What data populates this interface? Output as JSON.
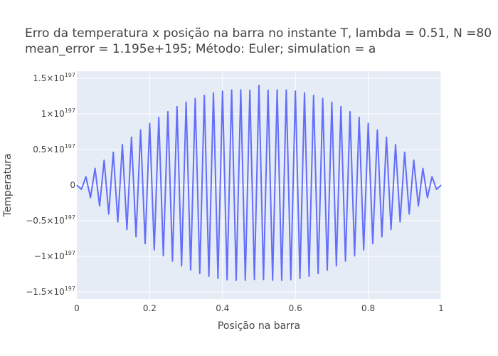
{
  "chart_data": {
    "type": "line",
    "title_lines": [
      "Erro da temperatura x posição na barra no instante T, lambda = 0.51, N =80",
      "mean_error = 1.195e+195; Método: Euler; simulation = a"
    ],
    "xlabel": "Posição na barra",
    "ylabel": "Temperatura",
    "xlim": [
      0,
      1
    ],
    "ylim": [
      -1.6e+197,
      1.6e+197
    ],
    "grid": true,
    "colors": {
      "line": "#636efa",
      "plot_bg": "#e5ecf6",
      "grid": "#ffffff"
    },
    "x_ticks": [
      {
        "value": 0,
        "label": "0"
      },
      {
        "value": 0.2,
        "label": "0.2"
      },
      {
        "value": 0.4,
        "label": "0.4"
      },
      {
        "value": 0.6,
        "label": "0.6"
      },
      {
        "value": 0.8,
        "label": "0.8"
      },
      {
        "value": 1,
        "label": "1"
      }
    ],
    "y_ticks": [
      {
        "value": 1.5e+197,
        "mantissa": "1.5×10",
        "exp": "197"
      },
      {
        "value": 1e+197,
        "mantissa": "1×10",
        "exp": "197"
      },
      {
        "value": 5e+196,
        "mantissa": "0.5×10",
        "exp": "197"
      },
      {
        "value": 0,
        "mantissa": "0",
        "exp": ""
      },
      {
        "value": -5e+196,
        "mantissa": "−0.5×10",
        "exp": "197"
      },
      {
        "value": -1e+197,
        "mantissa": "−1×10",
        "exp": "197"
      },
      {
        "value": -1.5e+197,
        "mantissa": "−1.5×10",
        "exp": "197"
      }
    ],
    "series": [
      {
        "x": [
          0,
          0.0125,
          0.025,
          0.0375,
          0.05,
          0.0625,
          0.075,
          0.0875,
          0.1,
          0.1125,
          0.125,
          0.1375,
          0.15,
          0.1625,
          0.175,
          0.1875,
          0.2,
          0.2125,
          0.225,
          0.2375,
          0.25,
          0.2625,
          0.275,
          0.2875,
          0.3,
          0.3125,
          0.325,
          0.3375,
          0.35,
          0.3625,
          0.375,
          0.3875,
          0.4,
          0.4125,
          0.425,
          0.4375,
          0.45,
          0.4625,
          0.475,
          0.4875,
          0.5,
          0.5125,
          0.525,
          0.5375,
          0.55,
          0.5625,
          0.575,
          0.5875,
          0.6,
          0.6125,
          0.625,
          0.6375,
          0.65,
          0.6625,
          0.675,
          0.6875,
          0.7,
          0.7125,
          0.725,
          0.7375,
          0.75,
          0.7625,
          0.775,
          0.7875,
          0.8,
          0.8125,
          0.825,
          0.8375,
          0.85,
          0.8625,
          0.875,
          0.8875,
          0.9,
          0.9125,
          0.925,
          0.9375,
          0.95,
          0.9625,
          0.975,
          0.9875,
          1
        ],
        "y": [
          0,
          -5.89e+195,
          1.177e+196,
          -1.763e+196,
          2.345e+196,
          -2.922e+196,
          3.494e+196,
          -4.059e+196,
          4.616e+196,
          -5.164e+196,
          5.701e+196,
          -6.228e+196,
          6.743e+196,
          -7.245e+196,
          7.732e+196,
          -8.205e+196,
          8.662e+196,
          -9.102e+196,
          9.524e+196,
          -9.928e+196,
          1.0313e+197,
          -1.0677e+197,
          1.1021e+197,
          -1.1343e+197,
          1.1644e+197,
          -1.1922e+197,
          1.2177e+197,
          -1.2409e+197,
          1.2617e+197,
          -1.28e+197,
          1.2959e+197,
          -1.3093e+197,
          1.3202e+197,
          -1.3286e+197,
          1.3344e+197,
          -1.3377e+197,
          1.3385e+197,
          -1.3367e+197,
          1.3323e+197,
          -1.3255e+197,
          1.4e+197,
          -1.3255e+197,
          1.3323e+197,
          -1.3367e+197,
          1.3385e+197,
          -1.3377e+197,
          1.3344e+197,
          -1.3286e+197,
          1.3202e+197,
          -1.3093e+197,
          1.2959e+197,
          -1.28e+197,
          1.2617e+197,
          -1.2409e+197,
          1.2177e+197,
          -1.1922e+197,
          1.1644e+197,
          -1.1343e+197,
          1.1021e+197,
          -1.0677e+197,
          1.0313e+197,
          -9.928e+196,
          9.524e+196,
          -9.102e+196,
          8.662e+196,
          -8.205e+196,
          7.732e+196,
          -7.245e+196,
          6.743e+196,
          -6.228e+196,
          5.701e+196,
          -5.164e+196,
          4.616e+196,
          -4.059e+196,
          3.494e+196,
          -2.922e+196,
          2.345e+196,
          -1.763e+196,
          1.177e+196,
          -5.89e+195,
          0
        ]
      }
    ]
  }
}
